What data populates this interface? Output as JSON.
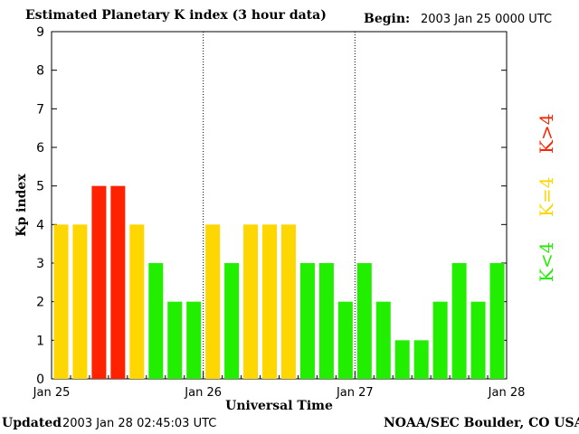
{
  "header": {
    "title": "Estimated Planetary K index (3 hour data)",
    "begin_label": "Begin:",
    "begin_value": "2003 Jan 25 0000 UTC"
  },
  "footer": {
    "updated_label": "Updated",
    "updated_value": "2003 Jan 28 02:45:03 UTC",
    "credit": "NOAA/SEC Boulder, CO USA"
  },
  "legend": {
    "high": {
      "label": "K>4",
      "color": "#ff2200"
    },
    "equal": {
      "label": "K=4",
      "color": "#ffd700"
    },
    "low": {
      "label": "K<4",
      "color": "#22ee00"
    }
  },
  "chart_data": {
    "type": "bar",
    "title": "Estimated Planetary K index (3 hour data)",
    "xlabel": "Universal Time",
    "ylabel": "Kp index",
    "ylim": [
      0,
      9
    ],
    "yticks": [
      "0",
      "1",
      "2",
      "3",
      "4",
      "5",
      "6",
      "7",
      "8",
      "9"
    ],
    "xtick_labels": [
      "Jan 25",
      "Jan 26",
      "Jan 27",
      "Jan 28"
    ],
    "values": [
      4,
      4,
      5,
      5,
      4,
      3,
      2,
      2,
      4,
      3,
      4,
      4,
      4,
      3,
      3,
      2,
      3,
      2,
      1,
      1,
      2,
      3,
      2,
      3
    ],
    "colors": {
      "high": "#ff2200",
      "equal": "#ffd700",
      "low": "#22ee00"
    }
  }
}
